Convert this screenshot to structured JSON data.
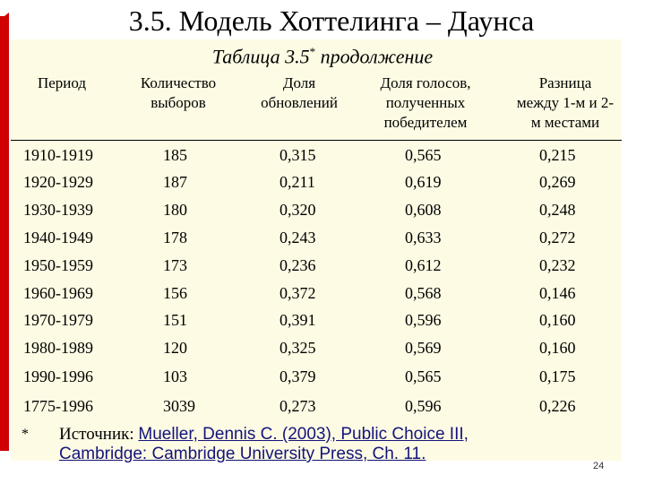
{
  "title": "3.5. Модель Хоттелинга – Даунса",
  "subtitle": "Таблица 3.5",
  "subtitle_mark": "*",
  "subtitle_rest": " продолжение",
  "table": {
    "headers": [
      [
        "Период"
      ],
      [
        "Количество",
        "выборов"
      ],
      [
        "Доля",
        "обновлений"
      ],
      [
        "Доля голосов,",
        "полученных",
        "победителем"
      ],
      [
        "Разница",
        "между 1-м и 2-",
        "м местами"
      ]
    ],
    "rows": [
      [
        "1910-1919",
        "185",
        "0,315",
        "0,565",
        "0,215"
      ],
      [
        "1920-1929",
        "187",
        "0,211",
        "0,619",
        "0,269"
      ],
      [
        "1930-1939",
        "180",
        "0,320",
        "0,608",
        "0,248"
      ],
      [
        "1940-1949",
        "178",
        "0,243",
        "0,633",
        "0,272"
      ],
      [
        "1950-1959",
        "173",
        "0,236",
        "0,612",
        "0,232"
      ],
      [
        "1960-1969",
        "156",
        "0,372",
        "0,568",
        "0,146"
      ],
      [
        "1970-1979",
        "151",
        "0,391",
        "0,596",
        "0,160"
      ],
      [
        "1980-1989",
        "120",
        "0,325",
        "0,569",
        "0,160"
      ],
      [
        "1990-1996",
        "103",
        "0,379",
        "0,565",
        "0,175"
      ],
      [
        "1775-1996",
        "3039",
        "0,273",
        "0,596",
        "0,226"
      ]
    ]
  },
  "footnote_mark": "*",
  "source_label": "Источник: ",
  "source_ref_line1": "Mueller, Dennis C. (2003), Public Choice III,",
  "source_ref_line2": "Cambridge: Cambridge University Press, Ch. 11.",
  "page_number": "24",
  "colors": {
    "accent": "#d00000",
    "panel": "#fdfbe4",
    "link": "#14147a"
  }
}
